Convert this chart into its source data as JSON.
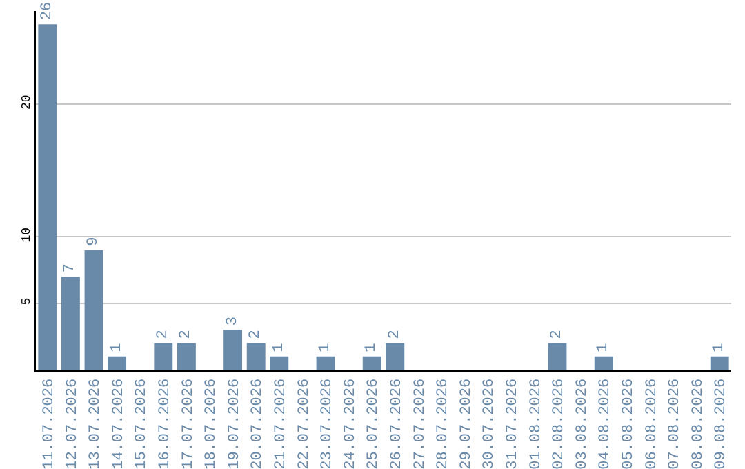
{
  "chart_data": {
    "type": "bar",
    "categories": [
      "11.07.2026",
      "12.07.2026",
      "13.07.2026",
      "14.07.2026",
      "15.07.2026",
      "16.07.2026",
      "17.07.2026",
      "18.07.2026",
      "19.07.2026",
      "20.07.2026",
      "21.07.2026",
      "22.07.2026",
      "23.07.2026",
      "24.07.2026",
      "25.07.2026",
      "26.07.2026",
      "27.07.2026",
      "28.07.2026",
      "29.07.2026",
      "30.07.2026",
      "31.07.2026",
      "01.08.2026",
      "02.08.2026",
      "03.08.2026",
      "04.08.2026",
      "05.08.2026",
      "06.08.2026",
      "07.08.2026",
      "08.08.2026",
      "09.08.2026"
    ],
    "values": [
      26,
      7,
      9,
      1,
      0,
      2,
      2,
      0,
      3,
      2,
      1,
      0,
      1,
      0,
      1,
      2,
      0,
      0,
      0,
      0,
      0,
      0,
      2,
      0,
      1,
      0,
      0,
      0,
      0,
      1
    ],
    "value_labels": [
      "26",
      "7",
      "9",
      "1",
      null,
      "2",
      "2",
      null,
      "3",
      "2",
      "1",
      null,
      "1",
      null,
      "1",
      "2",
      null,
      null,
      null,
      null,
      null,
      null,
      "2",
      null,
      "1",
      null,
      null,
      null,
      null,
      "1"
    ],
    "color": "#6a8aaa",
    "ylim": [
      0,
      27
    ],
    "yticks": [
      5,
      10,
      20
    ],
    "grid": "y"
  }
}
